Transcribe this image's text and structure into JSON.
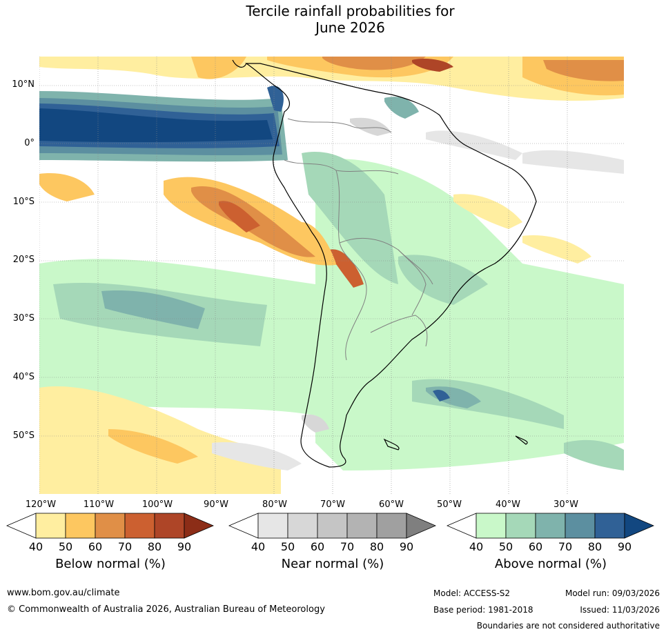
{
  "title": {
    "line1": "Tercile rainfall probabilities for",
    "line2": "June 2026"
  },
  "map": {
    "lat_labels": [
      "10°N",
      "0°",
      "10°S",
      "20°S",
      "30°S",
      "40°S",
      "50°S"
    ],
    "lon_labels": [
      "120°W",
      "110°W",
      "100°W",
      "90°W",
      "80°W",
      "70°W",
      "60°W",
      "50°W",
      "40°W",
      "30°W"
    ]
  },
  "legends": [
    {
      "title": "Below normal (%)",
      "ticks": [
        "40",
        "50",
        "60",
        "70",
        "80",
        "90"
      ],
      "colors": [
        "#ffeea0",
        "#fdc760",
        "#e08f47",
        "#cc6030",
        "#ae4527",
        "#8c2d17"
      ]
    },
    {
      "title": "Near normal (%)",
      "ticks": [
        "40",
        "50",
        "60",
        "70",
        "80",
        "90"
      ],
      "colors": [
        "#e6e6e6",
        "#d7d7d7",
        "#c5c5c5",
        "#b3b3b3",
        "#a0a0a0",
        "#7f7f7f"
      ]
    },
    {
      "title": "Above normal (%)",
      "ticks": [
        "40",
        "50",
        "60",
        "70",
        "80",
        "90"
      ],
      "colors": [
        "#c9f8c9",
        "#a5d8b8",
        "#7fb3ac",
        "#5c8fa0",
        "#306196",
        "#124780"
      ]
    }
  ],
  "footer": {
    "website": "www.bom.gov.au/climate",
    "copyright": "© Commonwealth of Australia 2026, Australian Bureau of Meteorology",
    "model": "Model: ACCESS-S2",
    "model_run": "Model run: 09/03/2026",
    "base_period": "Base period: 1981-2018",
    "issued": "Issued: 11/03/2026",
    "disclaimer": "Boundaries are not considered authoritative"
  }
}
